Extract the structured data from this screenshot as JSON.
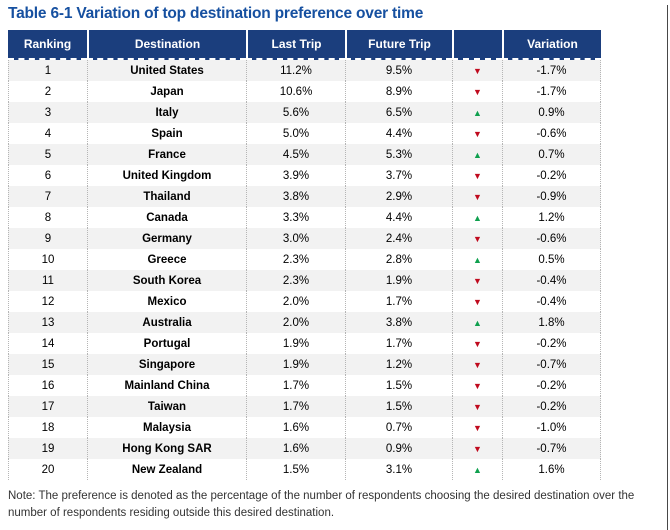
{
  "title": "Table 6-1 Variation of top destination preference over time",
  "colors": {
    "title_blue": "#1650A0",
    "header_navy": "#1B3E7D",
    "row_alt_gray": "#F2F2F2",
    "up_green": "#0FA04E",
    "down_red": "#C00A1E"
  },
  "trend_icons": {
    "up_glyph": "▲",
    "down_glyph": "▼",
    "up_name": "up-triangle-icon",
    "down_name": "down-triangle-icon"
  },
  "table": {
    "headers": [
      "Ranking",
      "Destination",
      "Last Trip",
      "Future Trip",
      "",
      "Variation"
    ],
    "rows": [
      {
        "ranking": "1",
        "destination": "United States",
        "last_trip": "11.2%",
        "future_trip": "9.5%",
        "trend": "down",
        "variation": "-1.7%"
      },
      {
        "ranking": "2",
        "destination": "Japan",
        "last_trip": "10.6%",
        "future_trip": "8.9%",
        "trend": "down",
        "variation": "-1.7%"
      },
      {
        "ranking": "3",
        "destination": "Italy",
        "last_trip": "5.6%",
        "future_trip": "6.5%",
        "trend": "up",
        "variation": "0.9%"
      },
      {
        "ranking": "4",
        "destination": "Spain",
        "last_trip": "5.0%",
        "future_trip": "4.4%",
        "trend": "down",
        "variation": "-0.6%"
      },
      {
        "ranking": "5",
        "destination": "France",
        "last_trip": "4.5%",
        "future_trip": "5.3%",
        "trend": "up",
        "variation": "0.7%"
      },
      {
        "ranking": "6",
        "destination": "United Kingdom",
        "last_trip": "3.9%",
        "future_trip": "3.7%",
        "trend": "down",
        "variation": "-0.2%"
      },
      {
        "ranking": "7",
        "destination": "Thailand",
        "last_trip": "3.8%",
        "future_trip": "2.9%",
        "trend": "down",
        "variation": "-0.9%"
      },
      {
        "ranking": "8",
        "destination": "Canada",
        "last_trip": "3.3%",
        "future_trip": "4.4%",
        "trend": "up",
        "variation": "1.2%"
      },
      {
        "ranking": "9",
        "destination": "Germany",
        "last_trip": "3.0%",
        "future_trip": "2.4%",
        "trend": "down",
        "variation": "-0.6%"
      },
      {
        "ranking": "10",
        "destination": "Greece",
        "last_trip": "2.3%",
        "future_trip": "2.8%",
        "trend": "up",
        "variation": "0.5%"
      },
      {
        "ranking": "11",
        "destination": "South Korea",
        "last_trip": "2.3%",
        "future_trip": "1.9%",
        "trend": "down",
        "variation": "-0.4%"
      },
      {
        "ranking": "12",
        "destination": "Mexico",
        "last_trip": "2.0%",
        "future_trip": "1.7%",
        "trend": "down",
        "variation": "-0.4%"
      },
      {
        "ranking": "13",
        "destination": "Australia",
        "last_trip": "2.0%",
        "future_trip": "3.8%",
        "trend": "up",
        "variation": "1.8%"
      },
      {
        "ranking": "14",
        "destination": "Portugal",
        "last_trip": "1.9%",
        "future_trip": "1.7%",
        "trend": "down",
        "variation": "-0.2%"
      },
      {
        "ranking": "15",
        "destination": "Singapore",
        "last_trip": "1.9%",
        "future_trip": "1.2%",
        "trend": "down",
        "variation": "-0.7%"
      },
      {
        "ranking": "16",
        "destination": "Mainland China",
        "last_trip": "1.7%",
        "future_trip": "1.5%",
        "trend": "down",
        "variation": "-0.2%"
      },
      {
        "ranking": "17",
        "destination": "Taiwan",
        "last_trip": "1.7%",
        "future_trip": "1.5%",
        "trend": "down",
        "variation": "-0.2%"
      },
      {
        "ranking": "18",
        "destination": "Malaysia",
        "last_trip": "1.6%",
        "future_trip": "0.7%",
        "trend": "down",
        "variation": "-1.0%"
      },
      {
        "ranking": "19",
        "destination": "Hong Kong SAR",
        "last_trip": "1.6%",
        "future_trip": "0.9%",
        "trend": "down",
        "variation": "-0.7%"
      },
      {
        "ranking": "20",
        "destination": "New Zealand",
        "last_trip": "1.5%",
        "future_trip": "3.1%",
        "trend": "up",
        "variation": "1.6%"
      }
    ]
  },
  "note": "Note: The preference is denoted as the percentage of the number of respondents choosing the desired destination over the number of respondents residing outside this desired destination."
}
